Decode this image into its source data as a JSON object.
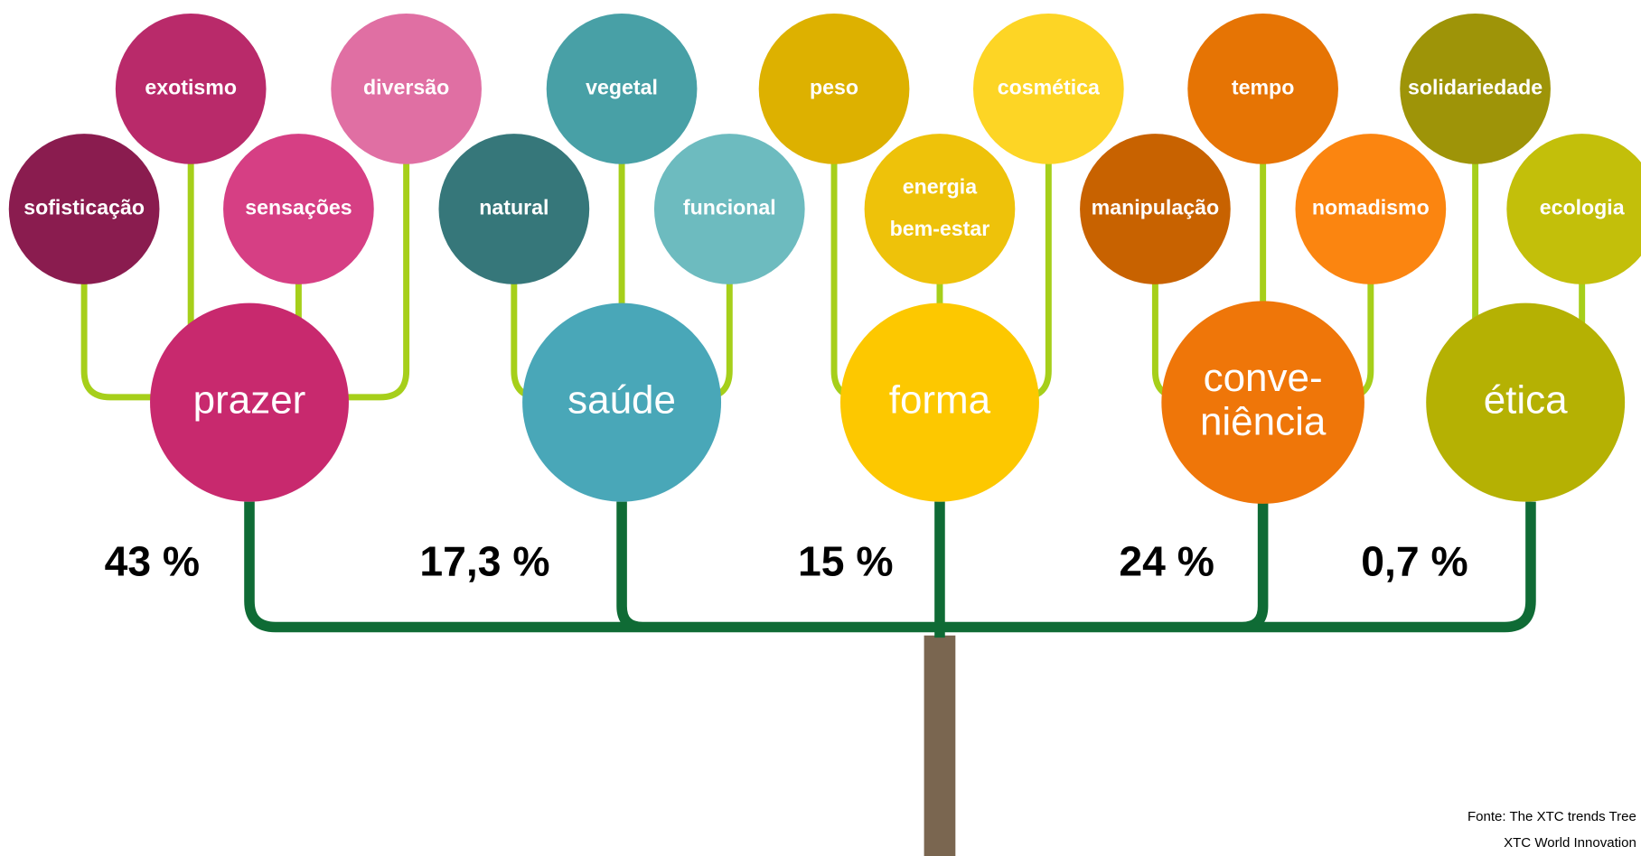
{
  "groups": [
    {
      "label": [
        "prazer"
      ],
      "color": "#c8296e",
      "percent": "43 %",
      "trends": [
        {
          "label": [
            "sofisticação"
          ],
          "color": "#8a1c4f"
        },
        {
          "label": [
            "exotismo"
          ],
          "color": "#b92a6a"
        },
        {
          "label": [
            "sensações"
          ],
          "color": "#d63f84"
        },
        {
          "label": [
            "diversão"
          ],
          "color": "#e06fa3"
        }
      ]
    },
    {
      "label": [
        "saúde"
      ],
      "color": "#49a7b8",
      "percent": "17,3 %",
      "trends": [
        {
          "label": [
            "natural"
          ],
          "color": "#36777a"
        },
        {
          "label": [
            "vegetal"
          ],
          "color": "#48a0a6"
        },
        {
          "label": [
            "funcional"
          ],
          "color": "#6dbbbf"
        }
      ]
    },
    {
      "label": [
        "forma"
      ],
      "color": "#fdc800",
      "percent": "15 %",
      "trends": [
        {
          "label": [
            "peso"
          ],
          "color": "#ddb100"
        },
        {
          "label": [
            "energia",
            "bem-estar"
          ],
          "color": "#eec20a"
        },
        {
          "label": [
            "cosmética"
          ],
          "color": "#fdd525"
        }
      ]
    },
    {
      "label": [
        "conve-",
        "niência"
      ],
      "color": "#ef7609",
      "percent": "24 %",
      "trends": [
        {
          "label": [
            "manipulação"
          ],
          "color": "#c86200"
        },
        {
          "label": [
            "tempo"
          ],
          "color": "#e67404"
        },
        {
          "label": [
            "nomadismo"
          ],
          "color": "#fb8510"
        }
      ]
    },
    {
      "label": [
        "ética"
      ],
      "color": "#b5b103",
      "percent": "0,7 %",
      "trends": [
        {
          "label": [
            "solidariedade"
          ],
          "color": "#9e9408"
        },
        {
          "label": [
            "ecologia"
          ],
          "color": "#c3bf0a"
        }
      ]
    }
  ],
  "source": [
    "Fonte: The XTC trends Tree",
    "XTC World Innovation"
  ]
}
